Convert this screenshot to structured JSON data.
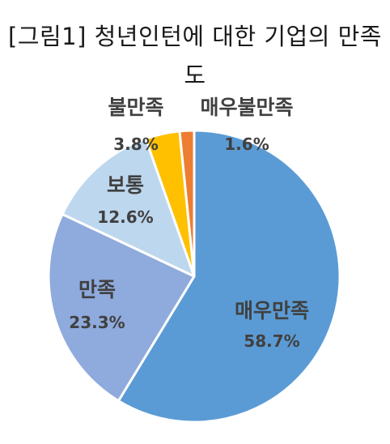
{
  "title_line1": "[그림1] 청년인턴에 대한 기업의 만족",
  "title_line2": "도",
  "chart_data": {
    "type": "pie",
    "title": "[그림1] 청년인턴에 대한 기업의 만족도",
    "start": "12 o'clock, clockwise",
    "slices": [
      {
        "label": "매우만족",
        "value": 58.7,
        "display": "58.7%",
        "color": "#5b9bd5"
      },
      {
        "label": "만족",
        "value": 23.3,
        "display": "23.3%",
        "color": "#8faadc"
      },
      {
        "label": "보통",
        "value": 12.6,
        "display": "12.6%",
        "color": "#bdd7ee"
      },
      {
        "label": "불만족",
        "value": 3.8,
        "display": "3.8%",
        "color": "#ffc000"
      },
      {
        "label": "매우불만족",
        "value": 1.6,
        "display": "1.6%",
        "color": "#ed7d31"
      }
    ]
  }
}
